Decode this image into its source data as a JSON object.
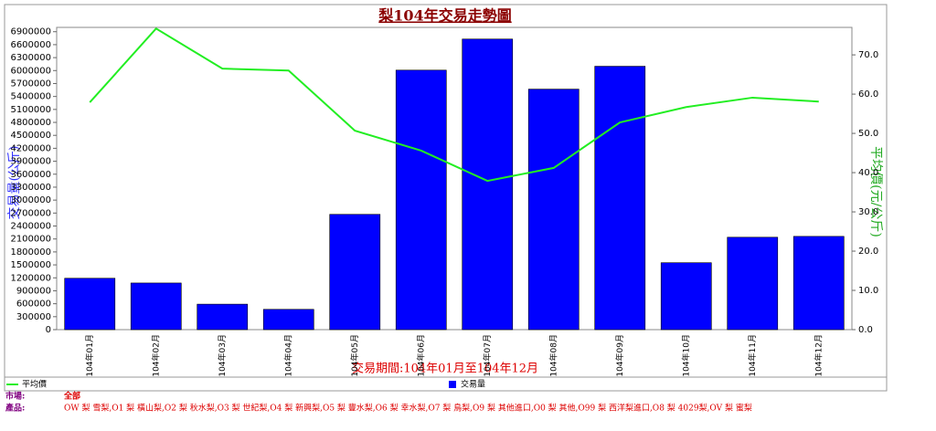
{
  "chart_data": {
    "type": "bar",
    "title": "梨104年交易走勢圖",
    "categories": [
      "104年01月",
      "104年02月",
      "104年03月",
      "104年04月",
      "104年05月",
      "104年06月",
      "104年07月",
      "104年08月",
      "104年09月",
      "104年10月",
      "104年11月",
      "104年12月"
    ],
    "series": [
      {
        "name": "交易量",
        "type": "bar",
        "color": "#0000ff",
        "values": [
          1190000,
          1080000,
          590000,
          470000,
          2670000,
          6010000,
          6730000,
          5570000,
          6100000,
          1550000,
          2140000,
          2160000
        ]
      },
      {
        "name": "平均價",
        "type": "line",
        "axis": "y2",
        "color": "#22ee22",
        "values": [
          57.9,
          76.7,
          66.5,
          66.0,
          50.7,
          45.6,
          37.9,
          41.2,
          52.8,
          56.7,
          59.1,
          58.1
        ]
      }
    ],
    "ylabel": "交易量(公斤)",
    "y2label": "平均價(元/公斤)",
    "xlabel": "交易期間:104年01月至104年12月",
    "ylim": [
      0,
      7000000
    ],
    "yticks": [
      0,
      300000,
      600000,
      900000,
      1200000,
      1500000,
      1800000,
      2100000,
      2400000,
      2700000,
      3000000,
      3300000,
      3600000,
      3900000,
      4200000,
      4500000,
      4800000,
      5100000,
      5400000,
      5700000,
      6000000,
      6300000,
      6600000,
      6900000
    ],
    "y2lim": [
      0,
      77
    ],
    "y2ticks": [
      {
        "value": 0,
        "label": "0.0"
      },
      {
        "value": 10,
        "label": "10.0"
      },
      {
        "value": 20,
        "label": "20.0"
      },
      {
        "value": 30,
        "label": "30.0"
      },
      {
        "value": 40,
        "label": "40.0"
      },
      {
        "value": 50,
        "label": "50.0"
      },
      {
        "value": 60,
        "label": "60.0"
      },
      {
        "value": 70,
        "label": "70.0"
      }
    ]
  },
  "filters": [
    {
      "label": "市場:",
      "value": "全部"
    },
    {
      "label": "產品:",
      "value": "OW 梨 雪梨,O1 梨 橫山梨,O2 梨 秋水梨,O3 梨 世紀梨,O4 梨 新興梨,O5 梨 豐水梨,O6 梨 幸水梨,O7 梨 鳥梨,O9 梨 其他進口,O0 梨 其他,O99 梨 西洋梨進口,O8 梨 4029梨,OV 梨 蜜梨"
    }
  ]
}
